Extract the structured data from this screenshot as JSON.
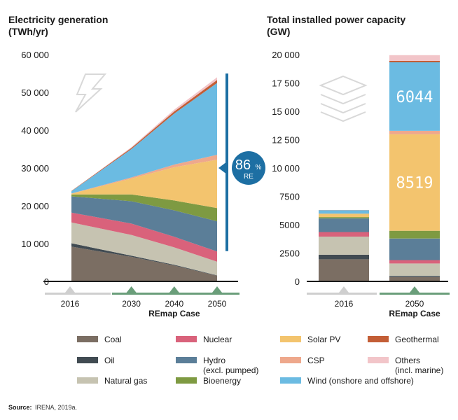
{
  "source": {
    "label": "Source:",
    "text": "IRENA, 2019a."
  },
  "colors": {
    "Coal": "#7b6e63",
    "Oil": "#414b52",
    "Natural gas": "#c6c3b1",
    "Nuclear": "#d9627b",
    "Hydro": "#5b7e98",
    "Bioenergy": "#7e9a42",
    "Solar PV": "#f3c46e",
    "CSP": "#eea88c",
    "Geothermal": "#c35e36",
    "Others": "#f2c5c9",
    "Wind": "#6bbbe2",
    "badge": "#1d6fa3",
    "axis_marker_grey": "#cfcfcf",
    "axis_marker_green": "#6a9e7a"
  },
  "icons": [
    "lightning-icon",
    "layers-icon"
  ],
  "legend": [
    {
      "key": "Coal",
      "lines": [
        "Coal"
      ]
    },
    {
      "key": "Oil",
      "lines": [
        "Oil"
      ]
    },
    {
      "key": "Natural gas",
      "lines": [
        "Natural gas"
      ]
    },
    {
      "key": "Nuclear",
      "lines": [
        "Nuclear"
      ]
    },
    {
      "key": "Hydro",
      "lines": [
        "Hydro",
        "(excl. pumped)"
      ]
    },
    {
      "key": "Bioenergy",
      "lines": [
        "Bioenergy"
      ]
    },
    {
      "key": "Solar PV",
      "lines": [
        "Solar PV"
      ]
    },
    {
      "key": "CSP",
      "lines": [
        "CSP"
      ]
    },
    {
      "key": "Others",
      "lines": [
        "Others",
        "(incl. marine)"
      ]
    },
    {
      "key": "Geothermal",
      "lines": [
        "Geothermal"
      ]
    },
    {
      "key": "Wind",
      "lines": [
        "Wind (onshore and offshore)"
      ]
    }
  ],
  "chart_data": [
    {
      "type": "area",
      "title": [
        "Electricity generation",
        "(TWh/yr)"
      ],
      "xlabel": "",
      "ylabel": "",
      "x_labels": [
        "2016",
        "2030",
        "2040",
        "2050"
      ],
      "x_case_label": "REmap Case",
      "x_positions": [
        2016,
        2030,
        2040,
        2050
      ],
      "ylim": [
        0,
        60000
      ],
      "yticks": [
        0,
        10000,
        20000,
        30000,
        40000,
        50000,
        60000
      ],
      "ytick_labels": [
        "0",
        "10 000",
        "20 000",
        "30 000",
        "40 000",
        "50 000",
        "60 000"
      ],
      "grid": false,
      "annotation": {
        "value": "86",
        "unit": "%",
        "sub": "RE",
        "bracket_range": [
          8000,
          55000
        ]
      },
      "series": [
        {
          "name": "Coal",
          "values": [
            9200,
            6500,
            4200,
            1500
          ]
        },
        {
          "name": "Oil",
          "values": [
            900,
            300,
            200,
            100
          ]
        },
        {
          "name": "Natural gas",
          "values": [
            5500,
            5500,
            4600,
            3600
          ]
        },
        {
          "name": "Nuclear",
          "values": [
            2600,
            3000,
            2800,
            2700
          ]
        },
        {
          "name": "Hydro",
          "values": [
            4300,
            5900,
            7000,
            8000
          ]
        },
        {
          "name": "Bioenergy",
          "values": [
            500,
            1800,
            2600,
            3500
          ]
        },
        {
          "name": "Solar PV",
          "values": [
            200,
            4200,
            8800,
            12800
          ]
        },
        {
          "name": "CSP",
          "values": [
            50,
            300,
            700,
            1300
          ]
        },
        {
          "name": "Wind",
          "values": [
            600,
            7500,
            13500,
            19000
          ]
        },
        {
          "name": "Geothermal",
          "values": [
            70,
            300,
            550,
            800
          ]
        },
        {
          "name": "Others",
          "values": [
            30,
            200,
            500,
            700
          ]
        }
      ]
    },
    {
      "type": "bar",
      "title": [
        "Total installed power capacity",
        "(GW)"
      ],
      "xlabel": "",
      "ylabel": "",
      "categories": [
        "2016",
        "2050"
      ],
      "x_case_label": "REmap Case",
      "ylim": [
        0,
        20000
      ],
      "yticks": [
        0,
        2500,
        5000,
        7500,
        10000,
        12500,
        15000,
        17500,
        20000
      ],
      "ytick_labels": [
        "0",
        "2500",
        "5000",
        "7500",
        "10 000",
        "12 500",
        "15 000",
        "17 500",
        "20 000"
      ],
      "grid": false,
      "data_labels": [
        {
          "series": "Solar PV",
          "category": "2050",
          "text": "8519"
        },
        {
          "series": "Wind",
          "category": "2050",
          "text": "6044"
        }
      ],
      "series": [
        {
          "name": "Coal",
          "values": [
            1950,
            380
          ]
        },
        {
          "name": "Oil",
          "values": [
            400,
            100
          ]
        },
        {
          "name": "Natural gas",
          "values": [
            1600,
            1100
          ]
        },
        {
          "name": "Nuclear",
          "values": [
            400,
            300
          ]
        },
        {
          "name": "Hydro",
          "values": [
            1200,
            1900
          ]
        },
        {
          "name": "Bioenergy",
          "values": [
            120,
            680
          ]
        },
        {
          "name": "Solar PV",
          "values": [
            300,
            8519
          ]
        },
        {
          "name": "CSP",
          "values": [
            10,
            300
          ]
        },
        {
          "name": "Wind",
          "values": [
            300,
            6044
          ]
        },
        {
          "name": "Geothermal",
          "values": [
            10,
            130
          ]
        },
        {
          "name": "Others",
          "values": [
            10,
            500
          ]
        }
      ]
    }
  ]
}
